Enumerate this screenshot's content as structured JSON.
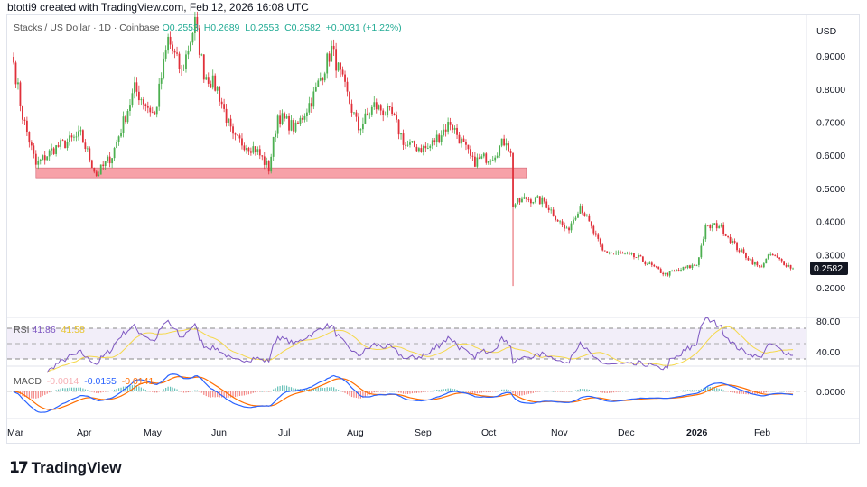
{
  "credit": "btotti9 created with TradingView.com, Feb 12, 2026 16:08 UTC",
  "legend": {
    "symbol": "Stacks / US Dollar · 1D · Coinbase",
    "open": "O0.2553",
    "high": "H0.2689",
    "low": "L0.2553",
    "close": "C0.2582",
    "change": "+0.0031 (+1.22%)"
  },
  "currency": "USD",
  "last_price": "0.2582",
  "price_axis": [
    "0.9000",
    "0.8000",
    "0.7000",
    "0.6000",
    "0.5000",
    "0.4000",
    "0.3000",
    "0.2000"
  ],
  "rsi": {
    "label": "RSI",
    "value": "41.86",
    "ma_value": "41.58",
    "axis": [
      "80.00",
      "40.00"
    ]
  },
  "macd": {
    "label": "MACD",
    "hist": "-0.0014",
    "macd": "-0.0155",
    "signal": "-0.0141",
    "axis": [
      "0.0000"
    ]
  },
  "time_axis": [
    "Mar",
    "Apr",
    "May",
    "Jun",
    "Jul",
    "Aug",
    "Sep",
    "Oct",
    "Nov",
    "Dec",
    "2026",
    "Feb"
  ],
  "brand": "TradingView",
  "colors": {
    "up": "#4caf50",
    "down": "#e0303a",
    "zone": "#f7a1a8",
    "rsi": "#7e57c2",
    "rsi_ma": "#f5d84a",
    "macd": "#2962ff",
    "signal": "#ff6d00"
  },
  "chart_data": {
    "type": "candlestick",
    "support_zone": {
      "from": "2025-03-11",
      "to": "2025-10-16",
      "low": 0.532,
      "high": 0.562
    },
    "crash_low": {
      "date": "2025-10-10",
      "low": 0.205
    },
    "key_closes": [
      [
        "2025-03-01",
        0.88
      ],
      [
        "2025-03-05",
        0.72
      ],
      [
        "2025-03-11",
        0.57
      ],
      [
        "2025-03-19",
        0.62
      ],
      [
        "2025-03-31",
        0.66
      ],
      [
        "2025-04-07",
        0.54
      ],
      [
        "2025-04-14",
        0.6
      ],
      [
        "2025-04-24",
        0.8
      ],
      [
        "2025-05-03",
        0.72
      ],
      [
        "2025-05-09",
        0.95
      ],
      [
        "2025-05-15",
        0.85
      ],
      [
        "2025-05-21",
        1.0
      ],
      [
        "2025-05-25",
        0.85
      ],
      [
        "2025-05-31",
        0.8
      ],
      [
        "2025-06-07",
        0.65
      ],
      [
        "2025-06-17",
        0.62
      ],
      [
        "2025-06-23",
        0.56
      ],
      [
        "2025-06-27",
        0.72
      ],
      [
        "2025-07-05",
        0.68
      ],
      [
        "2025-07-13",
        0.78
      ],
      [
        "2025-07-21",
        0.92
      ],
      [
        "2025-07-27",
        0.8
      ],
      [
        "2025-08-02",
        0.68
      ],
      [
        "2025-08-09",
        0.75
      ],
      [
        "2025-08-17",
        0.72
      ],
      [
        "2025-08-23",
        0.63
      ],
      [
        "2025-09-02",
        0.62
      ],
      [
        "2025-09-12",
        0.7
      ],
      [
        "2025-09-22",
        0.58
      ],
      [
        "2025-10-01",
        0.6
      ],
      [
        "2025-10-07",
        0.65
      ],
      [
        "2025-10-09",
        0.6
      ],
      [
        "2025-10-10",
        0.45
      ],
      [
        "2025-10-16",
        0.47
      ],
      [
        "2025-10-24",
        0.46
      ],
      [
        "2025-11-03",
        0.37
      ],
      [
        "2025-11-09",
        0.45
      ],
      [
        "2025-11-19",
        0.31
      ],
      [
        "2025-11-29",
        0.3
      ],
      [
        "2025-12-05",
        0.29
      ],
      [
        "2025-12-17",
        0.24
      ],
      [
        "2025-12-31",
        0.27
      ],
      [
        "2026-01-04",
        0.38
      ],
      [
        "2026-01-10",
        0.39
      ],
      [
        "2026-01-18",
        0.32
      ],
      [
        "2026-01-28",
        0.26
      ],
      [
        "2026-02-02",
        0.3
      ],
      [
        "2026-02-12",
        0.2582
      ]
    ]
  }
}
